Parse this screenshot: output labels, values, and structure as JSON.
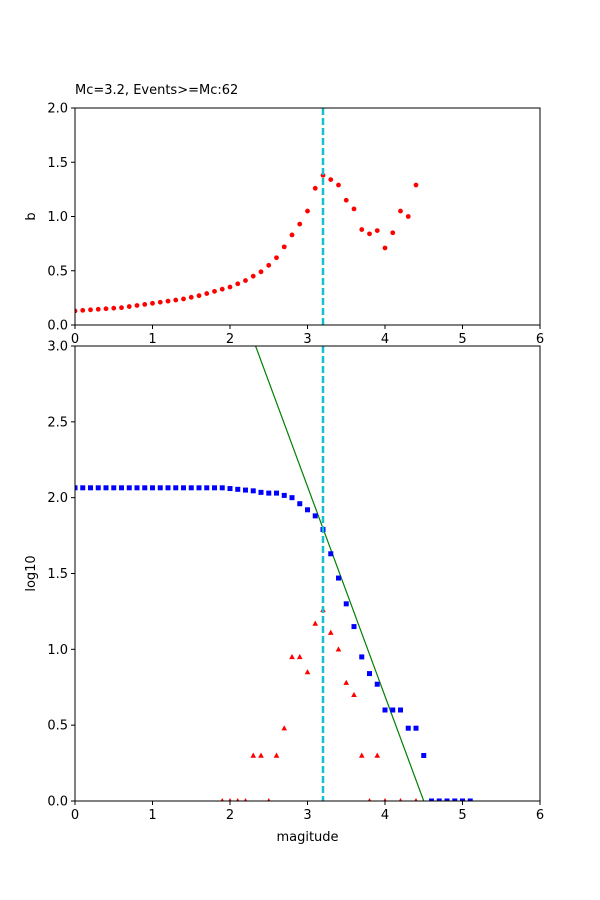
{
  "chart_data": [
    {
      "type": "scatter",
      "title": "Mc=3.2, Events>=Mc:62",
      "xlabel": "",
      "ylabel": "b",
      "xlim": [
        0,
        6
      ],
      "ylim": [
        0,
        2.0
      ],
      "x_ticks": [
        "0",
        "1",
        "2",
        "3",
        "4",
        "5",
        "6"
      ],
      "y_ticks": [
        "0.0",
        "0.5",
        "1.0",
        "1.5",
        "2.0"
      ],
      "grid": false,
      "mc_line": {
        "x": 3.2,
        "color": "#17becf",
        "style": "dashed"
      },
      "series": [
        {
          "marker": "circle",
          "color": "#ff0000",
          "x": [
            0,
            0.1,
            0.2,
            0.3,
            0.4,
            0.5,
            0.6,
            0.7,
            0.8,
            0.9,
            1.0,
            1.1,
            1.2,
            1.3,
            1.4,
            1.5,
            1.6,
            1.7,
            1.8,
            1.9,
            2.0,
            2.1,
            2.2,
            2.3,
            2.4,
            2.5,
            2.6,
            2.7,
            2.8,
            2.9,
            3.0,
            3.1,
            3.2,
            3.3,
            3.4,
            3.5,
            3.6,
            3.7,
            3.8,
            3.9,
            4.0,
            4.1,
            4.2,
            4.3,
            4.4
          ],
          "y": [
            0.13,
            0.135,
            0.14,
            0.145,
            0.15,
            0.155,
            0.16,
            0.17,
            0.18,
            0.19,
            0.2,
            0.21,
            0.22,
            0.23,
            0.24,
            0.255,
            0.27,
            0.29,
            0.31,
            0.33,
            0.35,
            0.38,
            0.41,
            0.45,
            0.49,
            0.55,
            0.62,
            0.72,
            0.83,
            0.93,
            1.05,
            1.26,
            1.38,
            1.34,
            1.29,
            1.15,
            1.07,
            0.88,
            0.84,
            0.87,
            0.71,
            0.85,
            1.05,
            1.0,
            1.29
          ]
        }
      ]
    },
    {
      "type": "scatter",
      "title": "",
      "xlabel": "magitude",
      "ylabel": "log10",
      "xlim": [
        0,
        6
      ],
      "ylim": [
        0,
        3.0
      ],
      "x_ticks": [
        "0",
        "1",
        "2",
        "3",
        "4",
        "5",
        "6"
      ],
      "y_ticks": [
        "0.0",
        "0.5",
        "1.0",
        "1.5",
        "2.0",
        "2.5",
        "3.0"
      ],
      "grid": false,
      "mc_line": {
        "x": 3.2,
        "color": "#17becf",
        "style": "dashed"
      },
      "fit_line": {
        "color": "#008000",
        "x": [
          2.33,
          4.5
        ],
        "y": [
          3.0,
          0.0
        ]
      },
      "series": [
        {
          "marker": "square",
          "color": "#0000ff",
          "x": [
            0,
            0.1,
            0.2,
            0.3,
            0.4,
            0.5,
            0.6,
            0.7,
            0.8,
            0.9,
            1.0,
            1.1,
            1.2,
            1.3,
            1.4,
            1.5,
            1.6,
            1.7,
            1.8,
            1.9,
            2.0,
            2.1,
            2.2,
            2.3,
            2.4,
            2.5,
            2.6,
            2.7,
            2.8,
            2.9,
            3.0,
            3.1,
            3.2,
            3.3,
            3.4,
            3.5,
            3.6,
            3.7,
            3.8,
            3.9,
            4.0,
            4.1,
            4.2,
            4.3,
            4.4,
            4.5,
            4.6,
            4.7,
            4.8,
            4.9,
            5.0,
            5.1
          ],
          "y": [
            2.065,
            2.065,
            2.065,
            2.065,
            2.065,
            2.065,
            2.065,
            2.065,
            2.065,
            2.065,
            2.065,
            2.065,
            2.065,
            2.065,
            2.065,
            2.065,
            2.065,
            2.065,
            2.065,
            2.065,
            2.06,
            2.055,
            2.05,
            2.045,
            2.035,
            2.03,
            2.03,
            2.015,
            2.0,
            1.96,
            1.92,
            1.88,
            1.79,
            1.63,
            1.47,
            1.3,
            1.15,
            0.95,
            0.84,
            0.77,
            0.6,
            0.6,
            0.6,
            0.48,
            0.48,
            0.3,
            0.0,
            0.0,
            0.0,
            0.0,
            0.0,
            0.0
          ]
        },
        {
          "marker": "triangle",
          "color": "#ff0000",
          "x": [
            1.9,
            2.0,
            2.1,
            2.2,
            2.3,
            2.4,
            2.5,
            2.6,
            2.7,
            2.8,
            2.9,
            3.0,
            3.1,
            3.2,
            3.3,
            3.4,
            3.5,
            3.6,
            3.7,
            3.8,
            3.9,
            4.0,
            4.2,
            4.4
          ],
          "y": [
            0.0,
            0.0,
            0.0,
            0.0,
            0.3,
            0.3,
            0.0,
            0.3,
            0.48,
            0.95,
            0.95,
            0.85,
            1.17,
            1.26,
            1.11,
            1.0,
            0.78,
            0.7,
            0.3,
            0.0,
            0.3,
            0.0,
            0.0,
            0.0
          ]
        }
      ]
    }
  ]
}
